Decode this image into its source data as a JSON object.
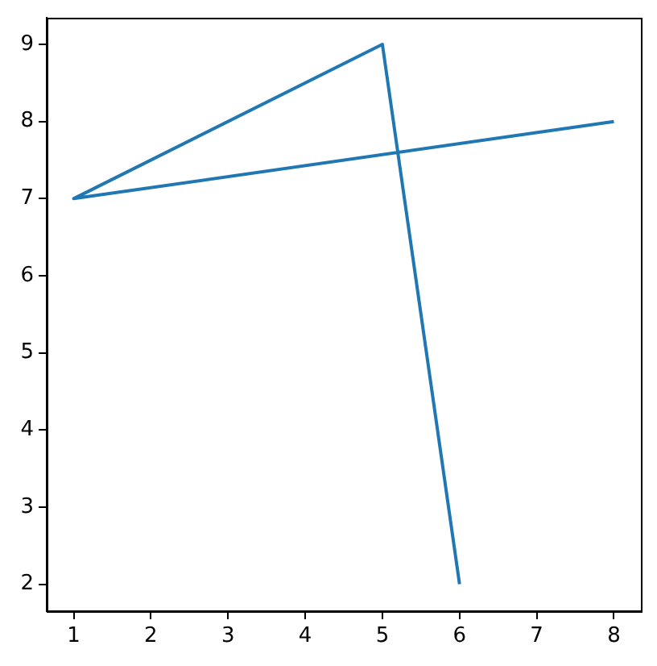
{
  "chart_data": {
    "type": "line",
    "x": [
      8,
      1,
      5,
      6
    ],
    "values": [
      8,
      7,
      9,
      2
    ],
    "color": "#1f77b4",
    "xlim": [
      0.65,
      8.35
    ],
    "ylim": [
      1.65,
      9.35
    ],
    "xticks": [
      1,
      2,
      3,
      4,
      5,
      6,
      7,
      8
    ],
    "yticks": [
      2,
      3,
      4,
      5,
      6,
      7,
      8,
      9
    ],
    "grid": false,
    "legend": false,
    "marker": "none",
    "line_style": "solid"
  }
}
